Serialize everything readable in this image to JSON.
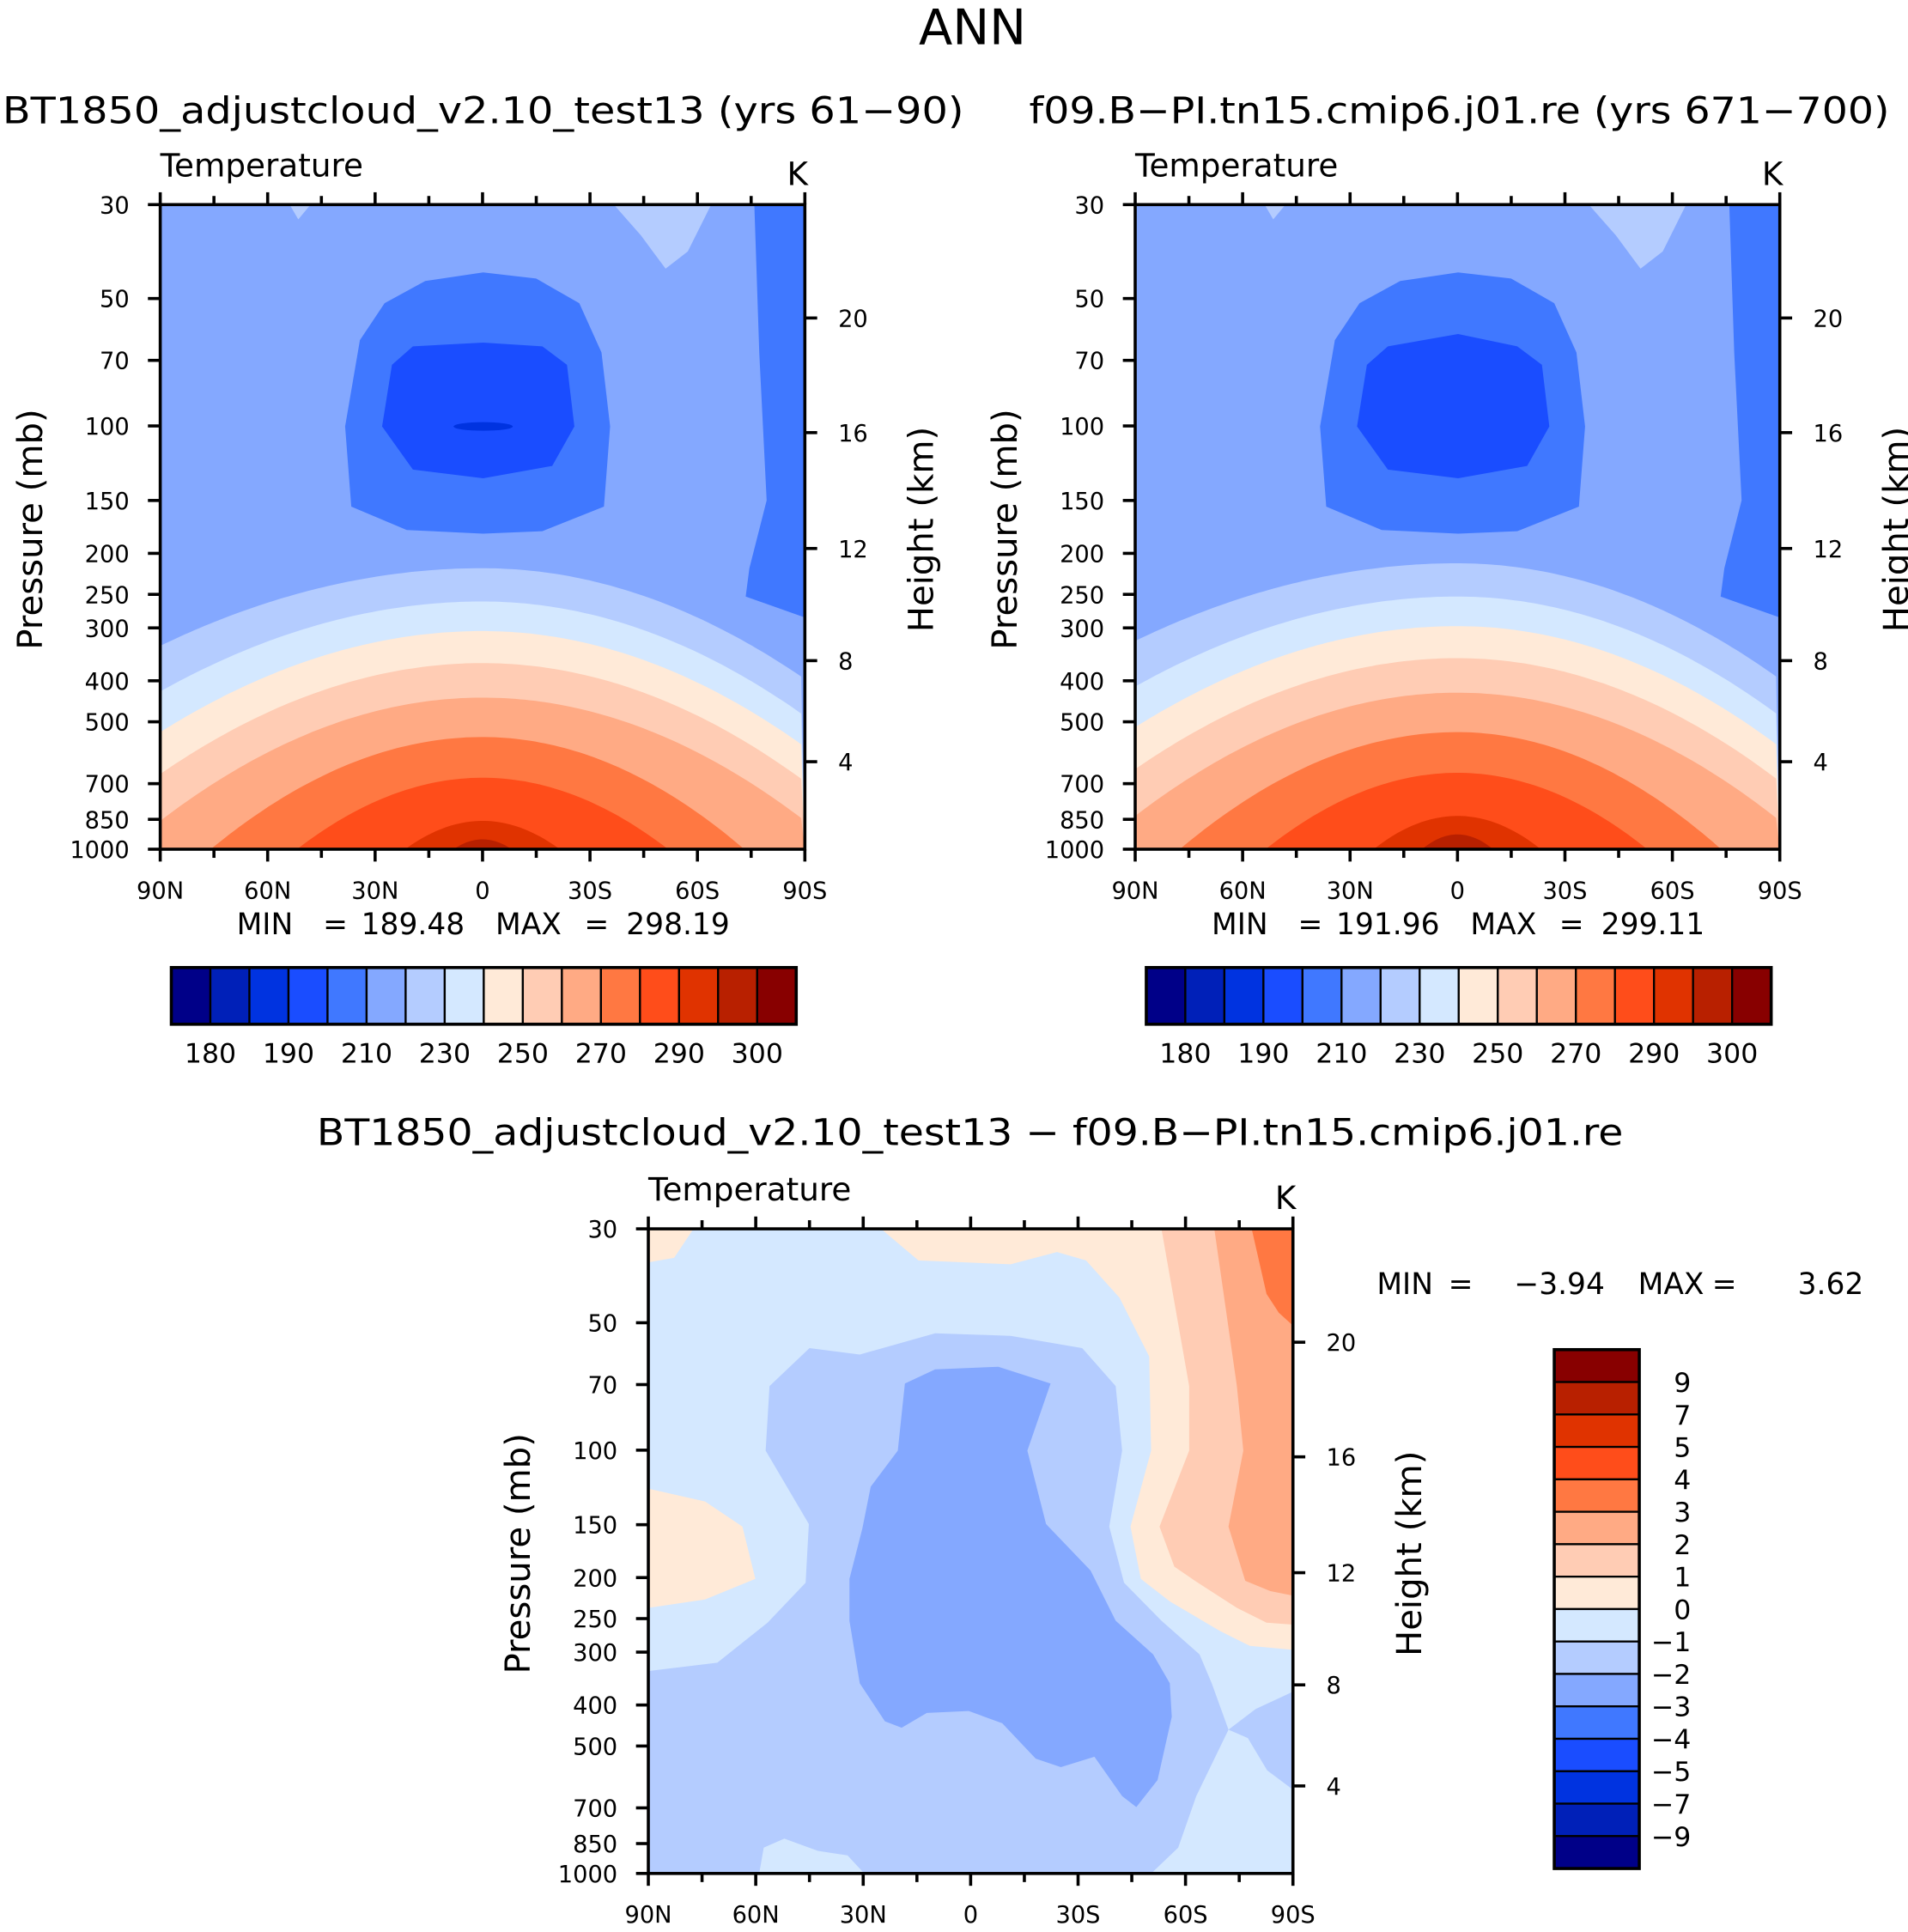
{
  "main_title": "ANN",
  "colors": [
    "#000088",
    "#0020B8",
    "#0033E0",
    "#1A4DFF",
    "#4078FF",
    "#84A8FF",
    "#B4CCFF",
    "#D4E8FF",
    "#FFEAD8",
    "#FFCCB4",
    "#FFAA84",
    "#FF7842",
    "#FF4D1A",
    "#E03300",
    "#B82000",
    "#880000"
  ],
  "chart_data": [
    {
      "type": "heatmap",
      "title": "BT1850_adjustcloud_v2.10_test13 (yrs 61−90)",
      "variable": "Temperature",
      "units": "K",
      "xlabel": "",
      "ylabel": "Pressure (mb)",
      "ylabel_right": "Height (km)",
      "x_ticks": [
        "90N",
        "60N",
        "30N",
        "0",
        "30S",
        "60S",
        "90S"
      ],
      "y_ticks": [
        "30",
        "50",
        "70",
        "100",
        "150",
        "200",
        "250",
        "300",
        "400",
        "500",
        "700",
        "850",
        "1000"
      ],
      "y_right_ticks": [
        "20",
        "16",
        "12",
        "8",
        "4"
      ],
      "min_max": {
        "min_label": "MIN",
        "min": "189.48",
        "max_label": "MAX",
        "max": "298.19",
        "eq": "="
      },
      "colorbar": {
        "levels": [
          180,
          185,
          190,
          200,
          210,
          220,
          230,
          240,
          250,
          260,
          270,
          280,
          290,
          295,
          300
        ],
        "labels": [
          "180",
          "190",
          "210",
          "230",
          "250",
          "270",
          "290",
          "300"
        ]
      }
    },
    {
      "type": "heatmap",
      "title": "f09.B−PI.tn15.cmip6.j01.re (yrs 671−700)",
      "variable": "Temperature",
      "units": "K",
      "ylabel": "Pressure (mb)",
      "ylabel_right": "Height (km)",
      "x_ticks": [
        "90N",
        "60N",
        "30N",
        "0",
        "30S",
        "60S",
        "90S"
      ],
      "y_ticks": [
        "30",
        "50",
        "70",
        "100",
        "150",
        "200",
        "250",
        "300",
        "400",
        "500",
        "700",
        "850",
        "1000"
      ],
      "y_right_ticks": [
        "20",
        "16",
        "12",
        "8",
        "4"
      ],
      "min_max": {
        "min_label": "MIN",
        "min": "191.96",
        "max_label": "MAX",
        "max": "299.11",
        "eq": "="
      },
      "colorbar": {
        "levels": [
          180,
          185,
          190,
          200,
          210,
          220,
          230,
          240,
          250,
          260,
          270,
          280,
          290,
          295,
          300
        ],
        "labels": [
          "180",
          "190",
          "210",
          "230",
          "250",
          "270",
          "290",
          "300"
        ]
      }
    },
    {
      "type": "heatmap",
      "title": "BT1850_adjustcloud_v2.10_test13 − f09.B−PI.tn15.cmip6.j01.re",
      "variable": "Temperature",
      "units": "K",
      "ylabel": "Pressure (mb)",
      "ylabel_right": "Height (km)",
      "x_ticks": [
        "90N",
        "60N",
        "30N",
        "0",
        "30S",
        "60S",
        "90S"
      ],
      "y_ticks": [
        "30",
        "50",
        "70",
        "100",
        "150",
        "200",
        "250",
        "300",
        "400",
        "500",
        "700",
        "850",
        "1000"
      ],
      "y_right_ticks": [
        "20",
        "16",
        "12",
        "8",
        "4"
      ],
      "min_max": {
        "min_label": "MIN",
        "min": "−3.94",
        "max_label": "MAX",
        "max": "3.62",
        "eq": "="
      },
      "colorbar": {
        "levels": [
          9,
          7,
          5,
          4,
          3,
          2,
          1,
          0,
          -1,
          -2,
          -3,
          -4,
          -5,
          -7,
          -9
        ],
        "labels": [
          "9",
          "7",
          "5",
          "4",
          "3",
          "2",
          "1",
          "0",
          "−1",
          "−2",
          "−3",
          "−4",
          "−5",
          "−7",
          "−9"
        ]
      }
    }
  ]
}
